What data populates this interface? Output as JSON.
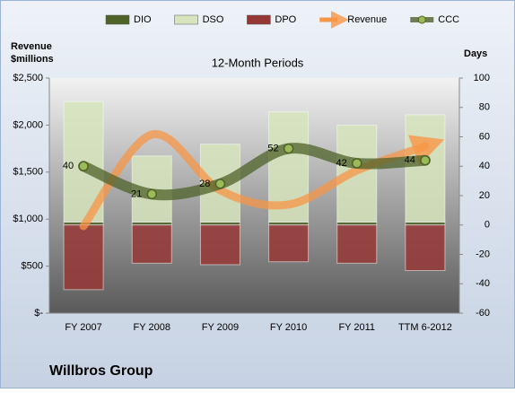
{
  "chart_data": {
    "type": "bar",
    "title": "12-Month Periods",
    "ylabel": [
      "Revenue",
      "$millions"
    ],
    "y2label": "Days",
    "footer": "Willbros Group",
    "categories": [
      "FY 2007",
      "FY 2008",
      "FY 2009",
      "FY 2010",
      "FY 2011",
      "TTM 6-2012"
    ],
    "series": [
      {
        "name": "DIO",
        "type": "bar",
        "axis": "y2",
        "color": "#4f6228",
        "values": [
          2,
          2,
          2,
          2,
          2,
          2
        ]
      },
      {
        "name": "DSO",
        "type": "bar",
        "axis": "y2",
        "color": "#d7e4bd",
        "values": [
          82,
          45,
          53,
          75,
          66,
          73
        ]
      },
      {
        "name": "DPO",
        "type": "bar",
        "axis": "y2",
        "color": "#953735",
        "values": [
          -44,
          -26,
          -27,
          -25,
          -26,
          -31
        ]
      },
      {
        "name": "Revenue",
        "type": "line",
        "color": "#f79646",
        "values": [
          925,
          1899,
          1307,
          1155,
          1517,
          1775
        ]
      },
      {
        "name": "CCC",
        "type": "line",
        "axis": "y2",
        "color": "#4f6228",
        "values": [
          40,
          21,
          28,
          52,
          42,
          44
        ],
        "data_labels": true
      }
    ],
    "ylim": [
      0,
      2500
    ],
    "yticks": [
      {
        "value": 0,
        "label": "$-"
      },
      {
        "value": 500,
        "label": "$500"
      },
      {
        "value": 1000,
        "label": "$1,000"
      },
      {
        "value": 1500,
        "label": "$1,500"
      },
      {
        "value": 2000,
        "label": "$2,000"
      },
      {
        "value": 2500,
        "label": "$2,500"
      }
    ],
    "y2lim": [
      -60,
      100
    ],
    "y2ticks": [
      -60,
      -40,
      -20,
      0,
      20,
      40,
      60,
      80,
      100
    ],
    "grid": false,
    "legend": "top"
  }
}
